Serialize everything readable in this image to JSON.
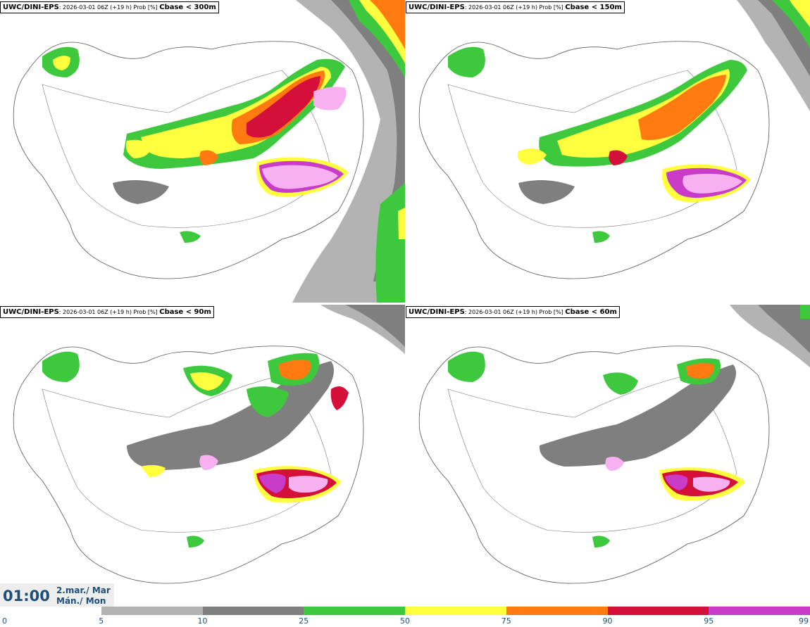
{
  "panels": [
    {
      "model": "UWC/DINI-EPS",
      "meta": ": 2026-03-01 06Z (+19 h) Prob [%] ",
      "variable": "Cbase < 300m"
    },
    {
      "model": "UWC/DINI-EPS",
      "meta": ": 2026-03-01 06Z (+19 h) Prob [%] ",
      "variable": "Cbase < 150m"
    },
    {
      "model": "UWC/DINI-EPS",
      "meta": ": 2026-03-01 06Z (+19 h) Prob [%] ",
      "variable": "Cbase < 90m"
    },
    {
      "model": "UWC/DINI-EPS",
      "meta": ": 2026-03-01 06Z (+19 h) Prob [%] ",
      "variable": "Cbase < 60m"
    }
  ],
  "valid_time": {
    "clock": "01:00",
    "date_line1": "2.mar./ Mar",
    "date_line2": "Mán./ Mon"
  },
  "colorbar": {
    "levels": [
      "0",
      "5",
      "10",
      "25",
      "50",
      "75",
      "90",
      "95",
      "99"
    ],
    "colors": [
      "#ffffff",
      "#b3b3b3",
      "#7f7f7f",
      "#3ec83e",
      "#ffff40",
      "#ff7a10",
      "#d4103a",
      "#c83cc8",
      "#f7b0f0"
    ]
  }
}
